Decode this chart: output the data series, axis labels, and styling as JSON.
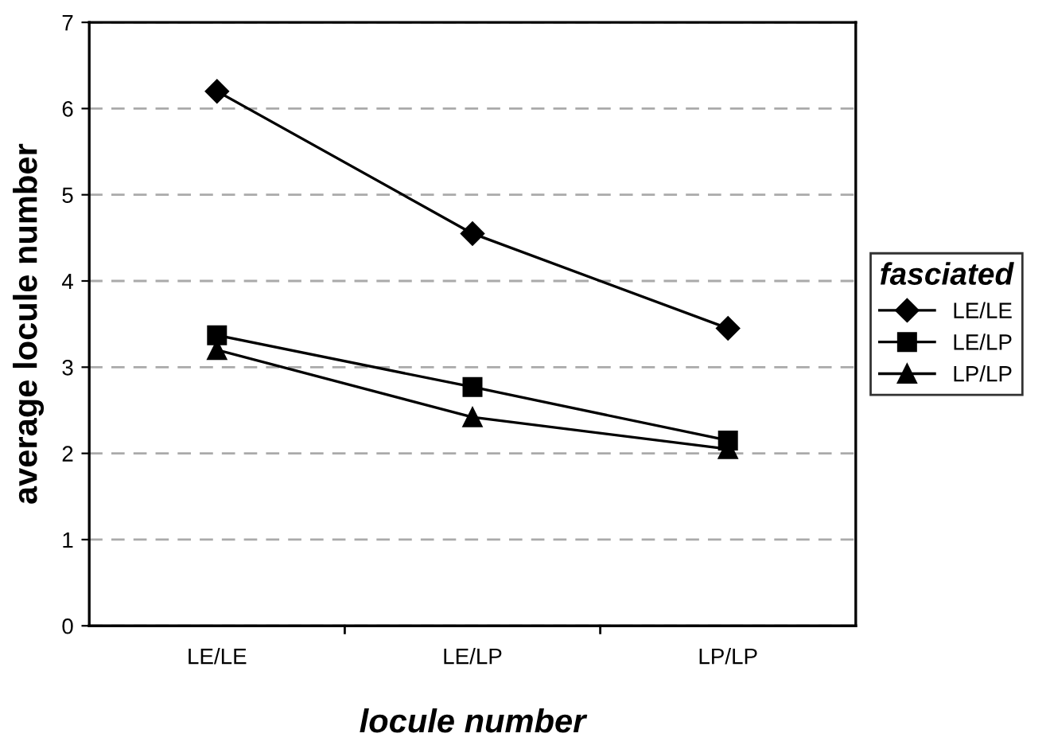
{
  "chart_data": {
    "type": "line",
    "xlabel": "locule number",
    "ylabel": "average locule number",
    "legend_title": "fasciated",
    "categories": [
      "LE/LE",
      "LE/LP",
      "LP/LP"
    ],
    "series": [
      {
        "name": "LE/LE",
        "color": "#000000",
        "marker": "diamond",
        "values": [
          6.2,
          4.55,
          3.45
        ]
      },
      {
        "name": "LE/LP",
        "color": "#000000",
        "marker": "square",
        "values": [
          3.37,
          2.77,
          2.15
        ]
      },
      {
        "name": "LP/LP",
        "color": "#000000",
        "marker": "triangle",
        "values": [
          3.2,
          2.42,
          2.05
        ]
      }
    ],
    "ylim": [
      0,
      7
    ],
    "yticks": [
      0,
      1,
      2,
      3,
      4,
      5,
      6,
      7
    ],
    "grid": "y",
    "legend": "right",
    "line_style": "solid"
  }
}
